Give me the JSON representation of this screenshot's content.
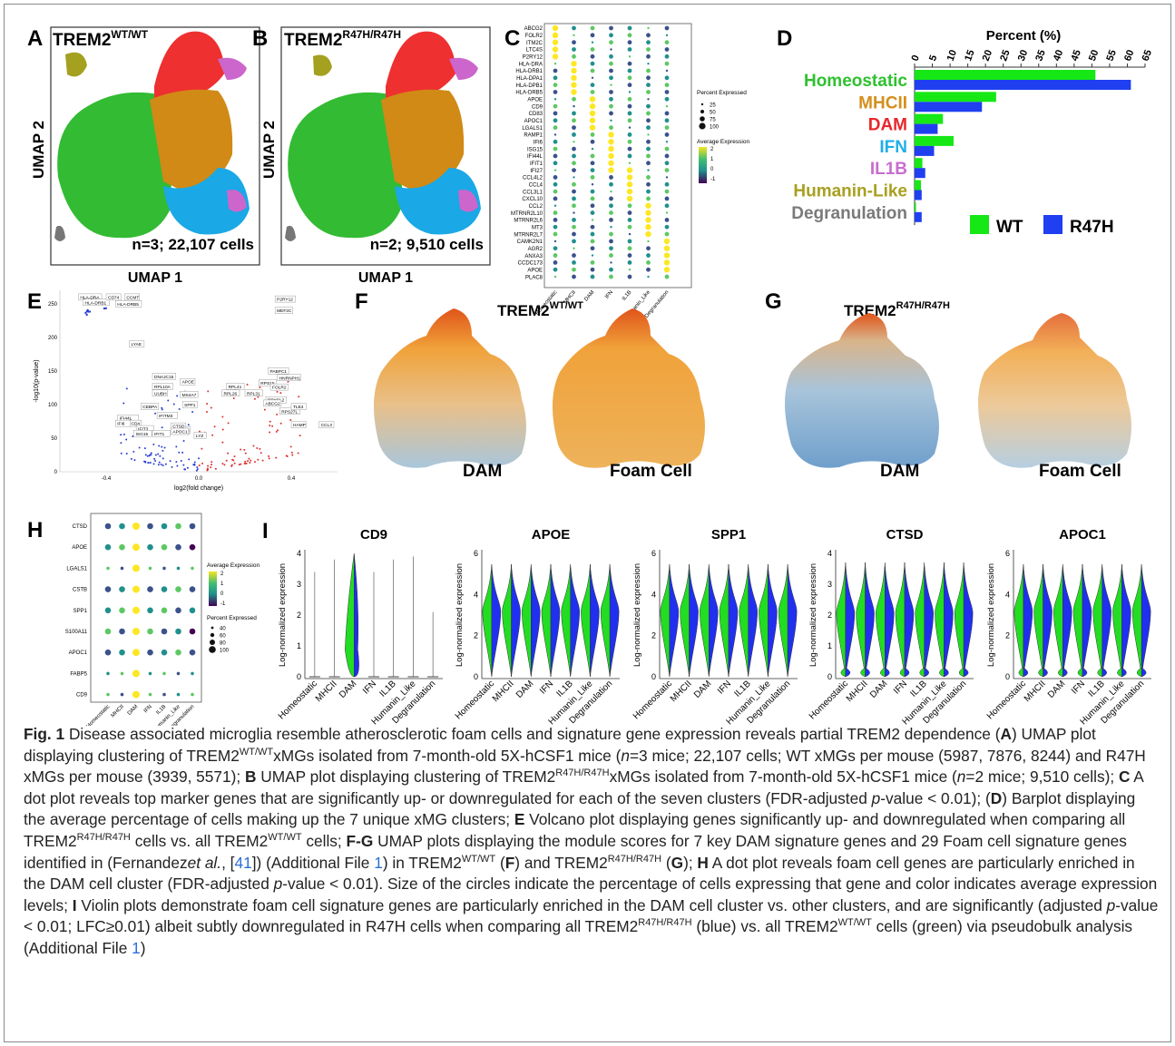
{
  "panels": {
    "A": {
      "letter": "A",
      "title_main": "TREM2",
      "title_sup": "WT/WT",
      "stats": "n=3; 22,107 cells",
      "xlabel": "UMAP 1",
      "ylabel": "UMAP 2"
    },
    "B": {
      "letter": "B",
      "title_main": "TREM2",
      "title_sup": "R47H/R47H",
      "stats": "n=2; 9,510 cells",
      "xlabel": "UMAP 1",
      "ylabel": "UMAP 2"
    },
    "C": {
      "letter": "C",
      "genes": [
        "ABCG2",
        "FOLR2",
        "ITM2C",
        "LTC4S",
        "P2RY12",
        "HLA-DRA",
        "HLA-DRB1",
        "HLA-DPA1",
        "HLA-DPB1",
        "HLA-DRB5",
        "APOE",
        "CD9",
        "CD83",
        "APOC1",
        "LGALS1",
        "RAMP1",
        "IFI6",
        "ISG15",
        "IFI44L",
        "IFIT1",
        "IFI27",
        "CCL4L2",
        "CCL4",
        "CCL3L1",
        "CXCL10",
        "CCL2",
        "MTRNR2L10",
        "MTRNR2L6",
        "MT3",
        "MTRNR2L7",
        "CAMK2N1",
        "AGR2",
        "ANXA3",
        "CCDC173",
        "APOE",
        "PLAC8"
      ],
      "clusters": [
        "Homeostatic",
        "MHCII",
        "DAM",
        "IFN",
        "IL1B",
        "Humanin_Like",
        "Degranulation"
      ],
      "legend_size_title": "Percent Expressed",
      "legend_sizes": [
        "25",
        "50",
        "75",
        "100"
      ],
      "legend_color_title": "Average Expression",
      "legend_color_ticks": [
        "2",
        "1",
        "0",
        "-1"
      ]
    },
    "D": {
      "letter": "D",
      "chart_data": {
        "type": "bar",
        "title": "Percent (%)",
        "categories": [
          "Homeostatic",
          "MHCII",
          "DAM",
          "IFN",
          "IL1B",
          "Humanin-Like",
          "Degranulation"
        ],
        "category_colors": [
          "#2fc12f",
          "#d48f1b",
          "#e8262b",
          "#1faee8",
          "#c86dd0",
          "#a8a020",
          "#7a7a7a"
        ],
        "series": [
          {
            "name": "WT",
            "color": "#16e816",
            "values": [
              51,
              23,
              8,
              11,
              2.2,
              1.8,
              0.4
            ]
          },
          {
            "name": "R47H",
            "color": "#1f3ff0",
            "values": [
              61,
              19,
              6.5,
              5.5,
              3,
              2,
              2
            ]
          }
        ],
        "xlim": [
          0,
          65
        ],
        "xticks": [
          "0",
          "5",
          "10",
          "15",
          "20",
          "25",
          "30",
          "35",
          "40",
          "45",
          "50",
          "55",
          "60",
          "65"
        ]
      }
    },
    "E": {
      "letter": "E",
      "xlabel": "log2(fold change)",
      "ylabel": "-log10(p-value)",
      "xticks": [
        "-0.4",
        "0.0",
        "0.4"
      ],
      "yticks": [
        "0",
        "50",
        "100",
        "150",
        "200",
        "250"
      ],
      "labels": [
        "HLA-DRA",
        "HLA-DRB1",
        "CD74",
        "CCMT",
        "HLA-DRB5",
        "P2RY12",
        "MEF2C",
        "LYAE",
        "DNAJC15",
        "RPL10A",
        "APOE",
        "UUBH",
        "MS4A7",
        "CEBPA",
        "SPP1",
        "IFI44L",
        "CD4",
        "IFIT3",
        "ISG15",
        "IFIT1",
        "IFI6",
        "MAFB",
        "PABPC1",
        "HNRNPH1",
        "RPS15",
        "FOLR2",
        "RPL41",
        "RPL26",
        "RPL31",
        "DPYSL2",
        "ABCG2",
        "RPS27L",
        "TLE4",
        "HAMP",
        "CCL3",
        "CTSD",
        "APOC1",
        "LYZ",
        "IFITM3"
      ]
    },
    "F": {
      "letter": "F",
      "title_main": "TREM2",
      "title_sup": "WT/WT",
      "left_label": "DAM",
      "right_label": "Foam Cell"
    },
    "G": {
      "letter": "G",
      "title_main": "TREM2",
      "title_sup": "R47H/R47H",
      "left_label": "DAM",
      "right_label": "Foam Cell"
    },
    "H": {
      "letter": "H",
      "genes": [
        "CTSD",
        "APOE",
        "LGALS1",
        "CSTB",
        "SPP1",
        "S100A11",
        "APOC1",
        "FABP5",
        "CD9"
      ],
      "clusters": [
        "Homeostatic",
        "MHCII",
        "DAM",
        "IFN",
        "IL1B",
        "Humanin_Like",
        "Degranulation"
      ],
      "legend_color_title": "Average Expression",
      "legend_color_ticks": [
        "2",
        "1",
        "0",
        "-1"
      ],
      "legend_size_title": "Percent Expressed",
      "legend_sizes": [
        "40",
        "60",
        "80",
        "100"
      ]
    },
    "I": {
      "letter": "I",
      "ylabel": "Log-normalized expression",
      "clusters": [
        "Homeostatic",
        "MHCII",
        "DAM",
        "IFN",
        "IL1B",
        "Humanin_Like",
        "Degranulation"
      ],
      "plots": [
        {
          "gene": "CD9",
          "ymax": "4",
          "yticks": [
            "0",
            "1",
            "2",
            "3",
            "4"
          ]
        },
        {
          "gene": "APOE",
          "ymax": "6",
          "yticks": [
            "0",
            "2",
            "4",
            "6"
          ]
        },
        {
          "gene": "SPP1",
          "ymax": "6",
          "yticks": [
            "0",
            "2",
            "4",
            "6"
          ]
        },
        {
          "gene": "CTSD",
          "ymax": "4",
          "yticks": [
            "0",
            "1",
            "2",
            "3",
            "4"
          ]
        },
        {
          "gene": "APOC1",
          "ymax": "6",
          "yticks": [
            "0",
            "2",
            "4",
            "6"
          ]
        }
      ]
    }
  },
  "caption": {
    "figno": "Fig. 1",
    "p1": " Disease associated microglia resemble atherosclerotic foam cells and signature gene expression reveals partial TREM2 dependence (",
    "A": "A",
    "p2": ") UMAP plot displaying clustering of TREM2",
    "sup_wt": "WT/WT",
    "p3": "xMGs isolated from 7-month-old 5X-hCSF1 mice (",
    "n_it": "n",
    "p4": "=3 mice; 22,107 cells; WT xMGs per mouse (5987, 7876, 8244) and R47H xMGs per mouse (3939, 5571); ",
    "B": "B",
    "p5": " UMAP plot displaying clustering of TREM2",
    "sup_r47h": "R47H/R47H",
    "p6": "xMGs isolated from 7-month-old 5X-hCSF1 mice (",
    "p7": "=2 mice; 9,510 cells); ",
    "C": "C",
    "p8": " A dot plot reveals top marker genes that are significantly up- or downregulated for each of the seven clusters (FDR-adjusted ",
    "p_it": "p",
    "p9": "-value < 0.01); (",
    "D": "D",
    "p10": ") Barplot displaying the average percentage of cells making up the 7 unique xMG clusters; ",
    "E": "E",
    "p11": " Volcano plot displaying genes significantly up- and downregulated when comparing all TREM2",
    "p12": " cells vs. all TREM2",
    "p13": " cells; ",
    "FG": "F-G",
    "p14": " UMAP plots displaying the module scores for 7 key DAM signature genes and 29 Foam cell signature genes identified in (Fernandez",
    "etal": "et al.",
    "p15": ", [",
    "ref41": "41",
    "p16": "]) (Additional File ",
    "ref1": "1",
    "p17": ") in TREM2",
    "p18": " (",
    "F": "F",
    "p19": ") and TREM2",
    "G": "G",
    "p20": "); ",
    "H": "H",
    "p21": " A dot plot reveals foam cell genes are particularly enriched in the DAM cell cluster (FDR-adjusted ",
    "p22": "-value < 0.01). Size of the circles indicate the percentage of cells expressing that gene and color indicates average expression levels; ",
    "I": "I",
    "p23": " Violin plots demonstrate foam cell signature genes are particularly enriched in the DAM cell cluster vs. other clusters, and are significantly (adjusted ",
    "p24": "-value < 0.01; LFC≥0.01) albeit subtly downregulated in R47H cells when comparing all TREM2",
    "p25": " (blue) vs. all TREM2",
    "p26": " cells (green) via pseudobulk analysis (Additional File ",
    "p27": ")"
  }
}
